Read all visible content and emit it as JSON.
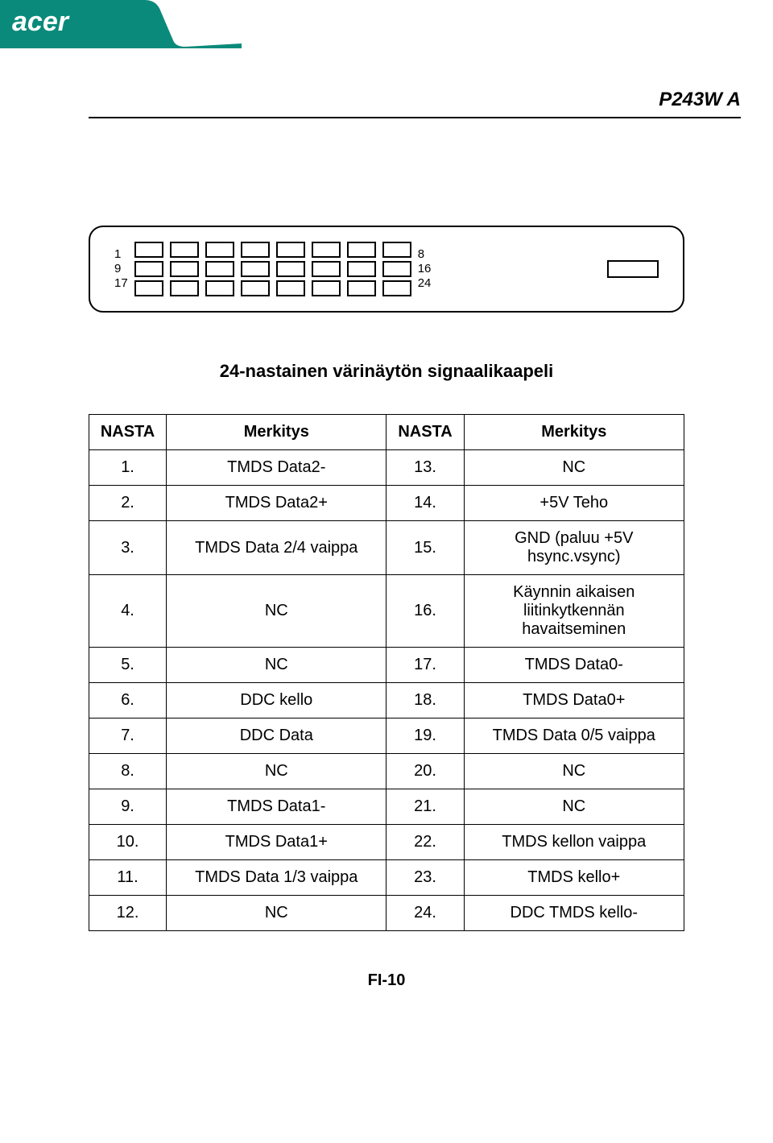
{
  "brand": "acer",
  "model": "P243W A",
  "header_color": "#0a8a7a",
  "caption": "24-nastainen värinäytön signaalikaapeli",
  "connector": {
    "left_labels": [
      "1",
      "9",
      "17"
    ],
    "right_labels": [
      "8",
      "16",
      "24"
    ],
    "cols_per_row": 8
  },
  "table": {
    "headers": [
      "NASTA",
      "Merkitys",
      "NASTA",
      "Merkitys"
    ],
    "rows": [
      [
        "1.",
        "TMDS Data2-",
        "13.",
        "NC"
      ],
      [
        "2.",
        "TMDS Data2+",
        "14.",
        "+5V Teho"
      ],
      [
        "3.",
        "TMDS Data 2/4 vaippa",
        "15.",
        "GND (paluu +5V hsync.vsync)"
      ],
      [
        "4.",
        "NC",
        "16.",
        "Käynnin aikaisen liitinkytkennän havaitseminen"
      ],
      [
        "5.",
        "NC",
        "17.",
        "TMDS Data0-"
      ],
      [
        "6.",
        "DDC kello",
        "18.",
        "TMDS Data0+"
      ],
      [
        "7.",
        "DDC Data",
        "19.",
        "TMDS Data 0/5 vaippa"
      ],
      [
        "8.",
        "NC",
        "20.",
        "NC"
      ],
      [
        "9.",
        "TMDS Data1-",
        "21.",
        "NC"
      ],
      [
        "10.",
        "TMDS Data1+",
        "22.",
        "TMDS kellon vaippa"
      ],
      [
        "11.",
        "TMDS Data 1/3 vaippa",
        "23.",
        "TMDS kello+"
      ],
      [
        "12.",
        "NC",
        "24.",
        "DDC TMDS kello-"
      ]
    ]
  },
  "footer_page": "FI-10"
}
